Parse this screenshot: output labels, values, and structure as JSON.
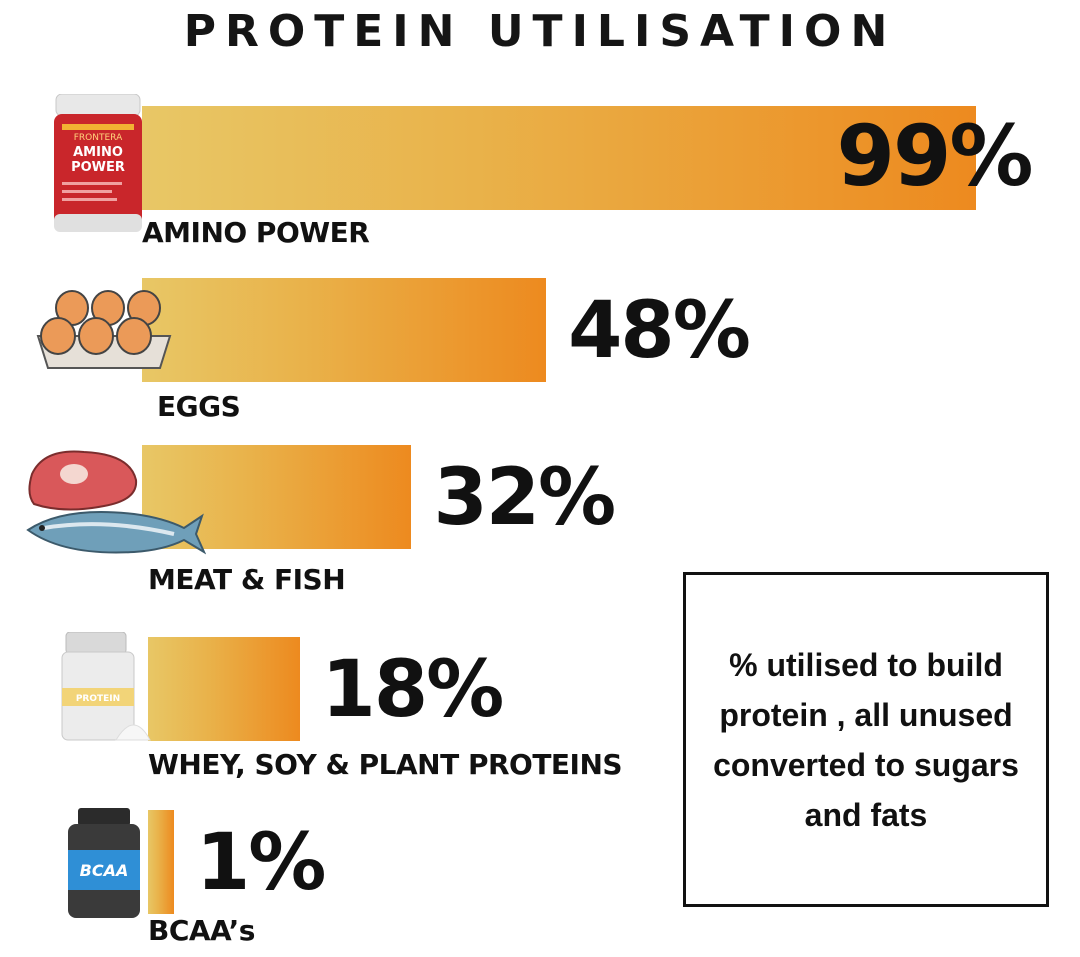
{
  "chart_data": {
    "type": "bar",
    "orientation": "horizontal",
    "title": "PROTEIN UTILISATION",
    "categories": [
      "AMINO POWER",
      "EGGS",
      "MEAT & FISH",
      "WHEY, SOY & PLANT PROTEINS",
      "BCAA’s"
    ],
    "values": [
      99,
      48,
      32,
      18,
      1
    ],
    "value_labels": [
      "99%",
      "48%",
      "32%",
      "18%",
      "1%"
    ],
    "unit": "%",
    "xlim": [
      0,
      100
    ],
    "grid": false,
    "bar_gradient": [
      "#e8c766",
      "#ed8a1f"
    ],
    "note": "% utilised to build protein , all unused converted to sugars and fats",
    "icons": [
      "amino-power-jar-icon",
      "egg-carton-icon",
      "meat-and-fish-icon",
      "protein-powder-tub-icon",
      "bcaa-bottle-icon"
    ]
  },
  "amino_brand": {
    "small": "FRONTERA",
    "line1": "AMINO",
    "line2": "POWER"
  },
  "whey_tub_text": "PROTEIN",
  "bcaa_bottle_text": "BCAA"
}
